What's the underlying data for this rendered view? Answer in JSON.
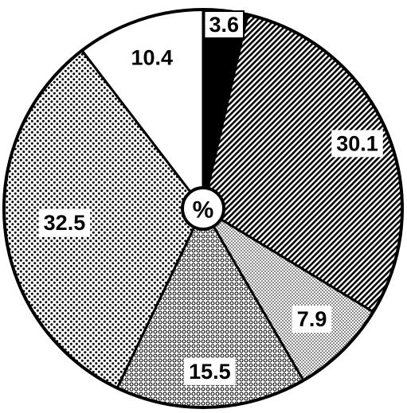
{
  "chart_data": {
    "type": "pie",
    "center_label": "%",
    "slices": [
      {
        "label": "3.6",
        "value": 3.6,
        "fill": "black"
      },
      {
        "label": "30.1",
        "value": 30.1,
        "fill": "diagonal-hatch"
      },
      {
        "label": "7.9",
        "value": 7.9,
        "fill": "fine-stipple"
      },
      {
        "label": "15.5",
        "value": 15.5,
        "fill": "small-circles"
      },
      {
        "label": "32.5",
        "value": 32.5,
        "fill": "dotted"
      },
      {
        "label": "10.4",
        "value": 10.4,
        "fill": "white"
      }
    ],
    "start": "12-o'clock",
    "direction": "clockwise",
    "colors": {
      "ink": "#000000",
      "paper": "#ffffff"
    }
  }
}
